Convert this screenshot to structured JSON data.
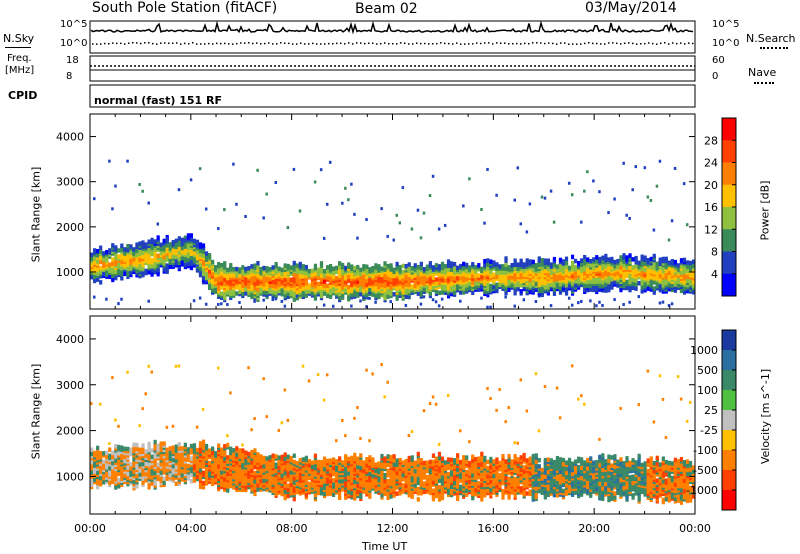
{
  "header": {
    "title": "South Pole Station (fitACF)",
    "beam": "Beam 02",
    "date": "03/May/2014"
  },
  "sky_panel": {
    "left_label": "N.Sky",
    "right_label": "N.Search",
    "left_ticks": [
      "10^5",
      "10^0"
    ],
    "right_ticks": [
      "10^5",
      "10^0"
    ]
  },
  "freq_panel": {
    "left_label_1": "Freq.",
    "left_label_2": "[MHz]",
    "right_label": "Nave",
    "left_ticks": [
      "18",
      "8"
    ],
    "right_ticks": [
      "60",
      "0"
    ]
  },
  "cpid": {
    "label": "CPID",
    "value": "normal (fast) 151 RF"
  },
  "power_colorbar": {
    "label": "Power [dB]",
    "ticks": [
      "28",
      "24",
      "20",
      "16",
      "12",
      "8",
      "4"
    ],
    "colors": [
      "#ff0000",
      "#ff4000",
      "#ff8000",
      "#ffc000",
      "#8fc040",
      "#3a8a5a",
      "#2040c0",
      "#0000ff"
    ]
  },
  "velocity_colorbar": {
    "label": "Velocity [m s^-1]",
    "ticks": [
      "1000",
      "500",
      "100",
      "25",
      "-25",
      "-100",
      "-500",
      "-1000"
    ],
    "colors": [
      "#1a3aa0",
      "#2a6fa0",
      "#3a8a6a",
      "#50c040",
      "#c0c0c0",
      "#ffc000",
      "#ff8000",
      "#ff4000",
      "#ff0000"
    ]
  },
  "chart_data": [
    {
      "type": "heatmap",
      "quantity": "Power",
      "title": "South Pole Station (fitACF)",
      "ylabel": "Slant Range [km]",
      "xlabel": "Time UT",
      "x_ticks": [
        "00:00",
        "04:00",
        "08:00",
        "12:00",
        "16:00",
        "20:00",
        "00:00"
      ],
      "y_ticks": [
        1000,
        2000,
        3000,
        4000
      ],
      "ylim": [
        180,
        4500
      ],
      "xlim_hours": [
        0,
        24
      ],
      "main_band": [
        {
          "t": 0,
          "range": 1150,
          "power": 24
        },
        {
          "t": 2,
          "range": 1300,
          "power": 24
        },
        {
          "t": 4,
          "range": 1500,
          "power": 20
        },
        {
          "t": 5,
          "range": 800,
          "power": 28
        },
        {
          "t": 8,
          "range": 800,
          "power": 28
        },
        {
          "t": 12,
          "range": 800,
          "power": 28
        },
        {
          "t": 16,
          "range": 900,
          "power": 24
        },
        {
          "t": 18,
          "range": 900,
          "power": 24
        },
        {
          "t": 21,
          "range": 1000,
          "power": 24
        },
        {
          "t": 24,
          "range": 900,
          "power": 24
        }
      ]
    },
    {
      "type": "heatmap",
      "quantity": "Velocity",
      "ylabel": "Slant Range [km]",
      "xlabel": "Time UT",
      "x_ticks": [
        "00:00",
        "04:00",
        "08:00",
        "12:00",
        "16:00",
        "20:00",
        "00:00"
      ],
      "y_ticks": [
        1000,
        2000,
        3000,
        4000
      ],
      "ylim": [
        180,
        4500
      ],
      "xlim_hours": [
        0,
        24
      ],
      "main_band": [
        {
          "t": 0,
          "range": 1200,
          "velocity": -100
        },
        {
          "t": 4,
          "range": 1300,
          "velocity": -100
        },
        {
          "t": 8,
          "range": 1000,
          "velocity": -100
        },
        {
          "t": 12,
          "range": 1000,
          "velocity": -100
        },
        {
          "t": 16,
          "range": 1000,
          "velocity": -100
        },
        {
          "t": 20,
          "range": 1000,
          "velocity": 100
        },
        {
          "t": 24,
          "range": 900,
          "velocity": -25
        }
      ]
    }
  ]
}
